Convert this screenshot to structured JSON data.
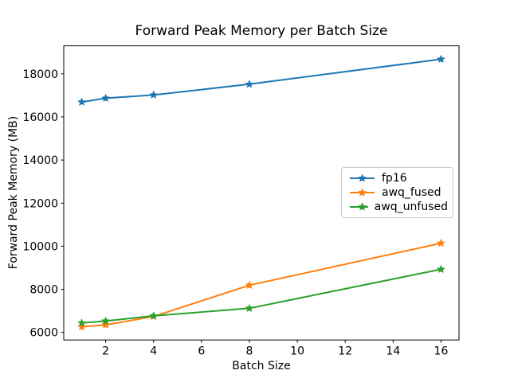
{
  "chart_data": {
    "type": "line",
    "title": "Forward Peak Memory per Batch Size",
    "xlabel": "Batch Size",
    "ylabel": "Forward Peak Memory (MB)",
    "x": [
      1,
      2,
      4,
      8,
      16
    ],
    "series": [
      {
        "name": "fp16",
        "color": "#1f77b4",
        "marker": "star",
        "values": [
          16690,
          16870,
          17020,
          17520,
          18680
        ]
      },
      {
        "name": "awq_fused",
        "color": "#ff7f0e",
        "marker": "star",
        "values": [
          6260,
          6350,
          6740,
          8190,
          10140
        ]
      },
      {
        "name": "awq_unfused",
        "color": "#2ca02c",
        "marker": "star",
        "values": [
          6440,
          6530,
          6770,
          7120,
          8930
        ]
      }
    ],
    "xlim": [
      0.25,
      16.75
    ],
    "ylim": [
      5650,
      19300
    ],
    "x_ticks": [
      2,
      4,
      6,
      8,
      10,
      12,
      14,
      16
    ],
    "y_ticks": [
      6000,
      8000,
      10000,
      12000,
      14000,
      16000,
      18000
    ],
    "grid": false,
    "legend_position": "center right",
    "axis_color": "#000000",
    "background": "#ffffff"
  }
}
